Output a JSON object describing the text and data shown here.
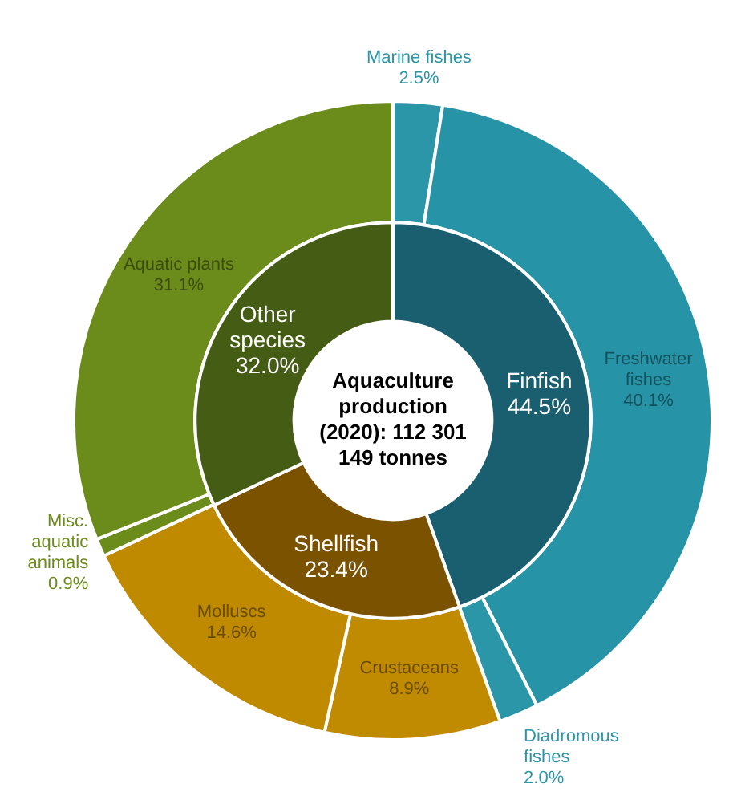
{
  "chart_data": [
    {
      "type": "donut",
      "legend": false,
      "categories": [
        "Marine fishes",
        "Freshwater fishes",
        "Diadromous fishes",
        "Crustaceans",
        "Molluscs",
        "Misc. aquatic animals",
        "Aquatic plants"
      ],
      "values": [
        2.5,
        40.1,
        2.0,
        8.9,
        14.6,
        0.9,
        31.1
      ],
      "value_labels": [
        "2.5%",
        "40.1%",
        "2.0%",
        "8.9%",
        "14.6%",
        "0.9%",
        "31.1%"
      ],
      "colors": [
        "#2b96a8",
        "#2793a7",
        "#2b96a8",
        "#c08b00",
        "#bf8a00",
        "#6b8c1a",
        "#6b8c1a"
      ]
    },
    {
      "type": "donut",
      "legend": false,
      "title": "Aquaculture production (2020): 112 301 149 tonnes",
      "categories": [
        "Finfish",
        "Shellfish",
        "Other species"
      ],
      "values": [
        44.5,
        23.4,
        32.0
      ],
      "value_labels": [
        "44.5%",
        "23.4%",
        "32.0%"
      ],
      "colors": [
        "#1a5f70",
        "#7a5200",
        "#445c14"
      ]
    }
  ]
}
